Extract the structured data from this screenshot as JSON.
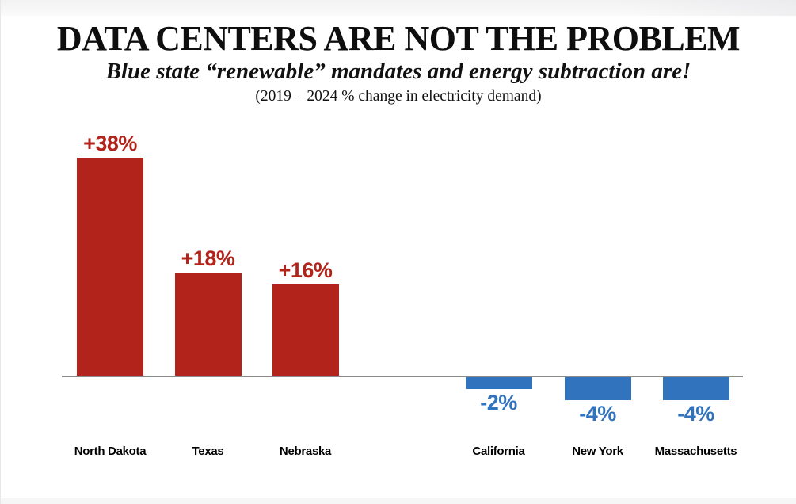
{
  "header": {
    "title": "DATA CENTERS ARE NOT THE PROBLEM",
    "subtitle": "Blue state “renewable” mandates and energy subtraction are!",
    "caption": "(2019 – 2024 % change in electricity demand)"
  },
  "chart_data": {
    "type": "bar",
    "title": "DATA CENTERS ARE NOT THE PROBLEM",
    "subtitle": "Blue state “renewable” mandates and energy subtraction are!",
    "caption": "(2019 – 2024 % change in electricity demand)",
    "categories": [
      "North Dakota",
      "Texas",
      "Nebraska",
      "California",
      "New York",
      "Massachusetts"
    ],
    "series": [
      {
        "name": "% change in electricity demand, 2019-2024",
        "values": [
          38,
          18,
          16,
          -2,
          -4,
          -4
        ]
      }
    ],
    "value_labels": [
      "+38%",
      "+18%",
      "+16%",
      "-2%",
      "-4%",
      "-4%"
    ],
    "positive_color": "#B2241B",
    "negative_color": "#3273BE",
    "axis_color": "#8A8A8A",
    "ylabel": "",
    "xlabel": "",
    "ylim": [
      -6,
      42
    ],
    "baseline": 0,
    "grid": false,
    "legend": null
  }
}
